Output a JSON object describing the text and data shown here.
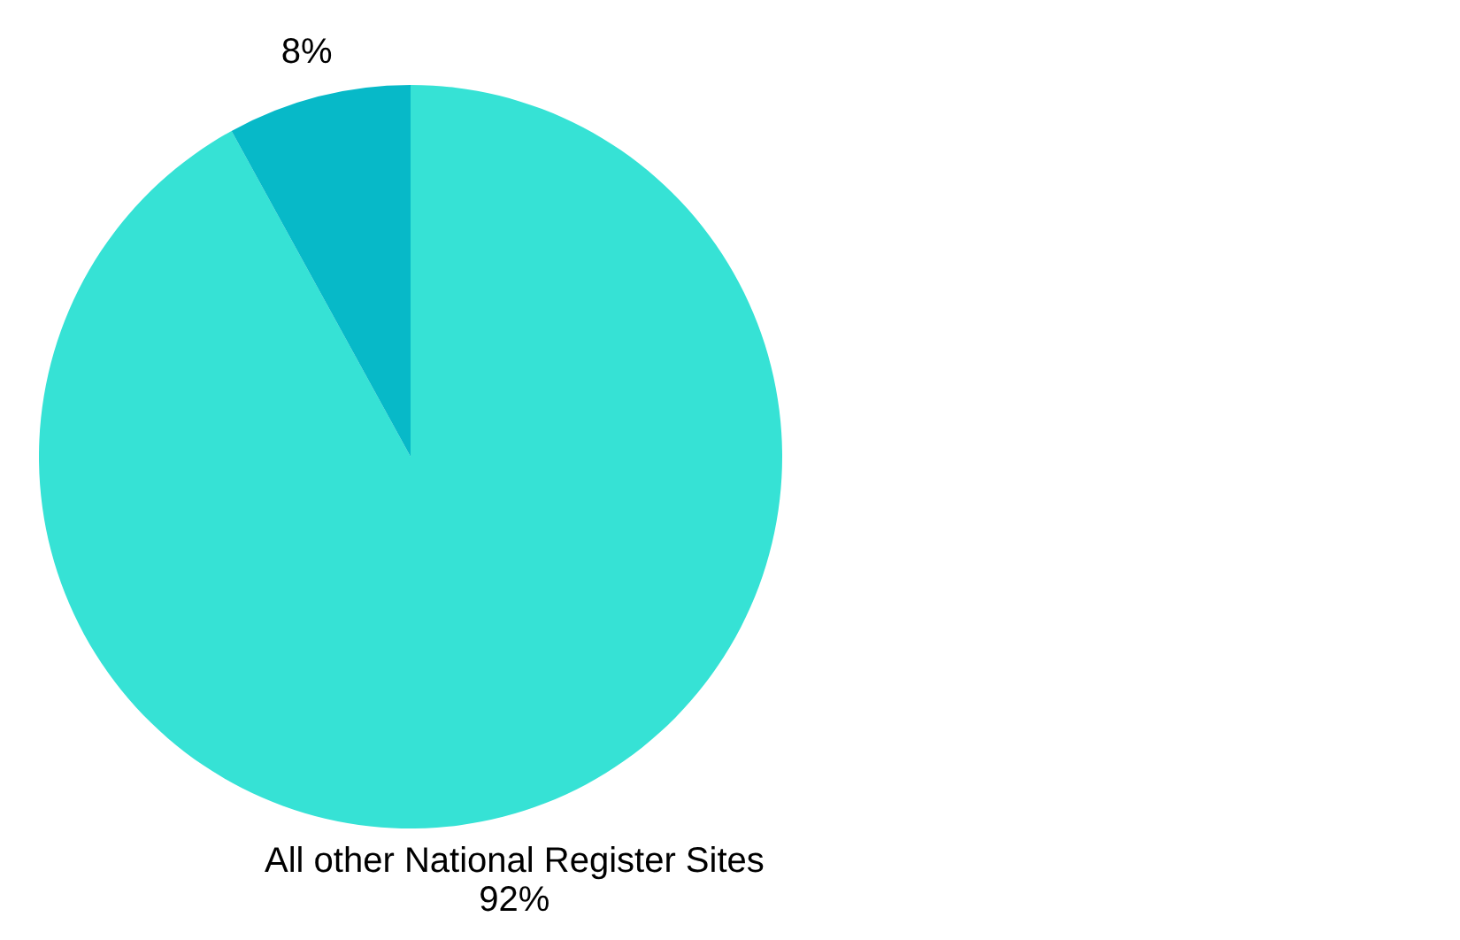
{
  "chart_data": {
    "type": "pie",
    "categories": [
      "All other National Register Sites",
      null
    ],
    "values": [
      92,
      8
    ],
    "colors": [
      "#36e2d5",
      "#07b9c8"
    ],
    "value_labels": [
      "92%",
      "8%"
    ]
  }
}
